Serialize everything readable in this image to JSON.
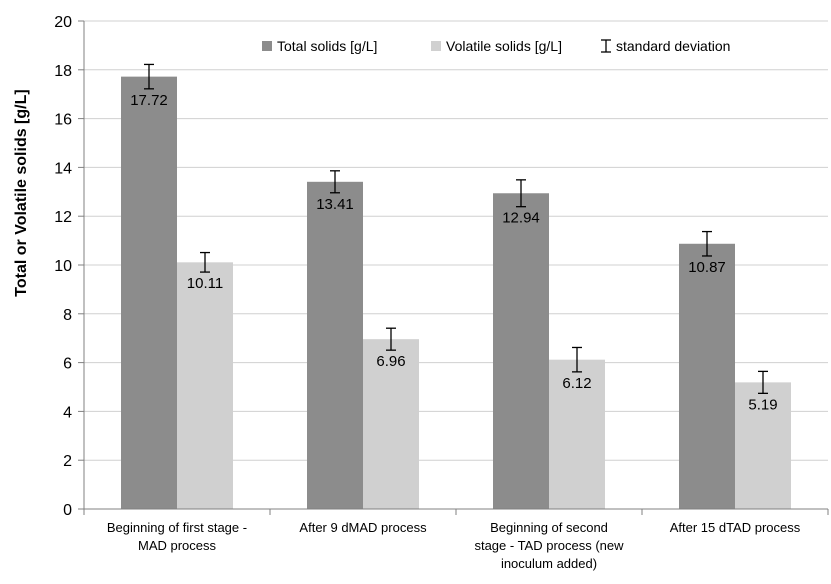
{
  "chart_data": {
    "type": "bar",
    "ylabel": "Total or Volatile solids [g/L]",
    "xlabel": "",
    "ylim": [
      0,
      20
    ],
    "yticks": [
      0,
      2,
      4,
      6,
      8,
      10,
      12,
      14,
      16,
      18,
      20
    ],
    "grid": true,
    "legend_position": "top-right",
    "categories": [
      [
        "Beginning of first stage -",
        "MAD process"
      ],
      [
        "After 9 dMAD process"
      ],
      [
        "Beginning of second",
        "stage - TAD process (new",
        "inoculum added)"
      ],
      [
        "After 15 dTAD process"
      ]
    ],
    "series": [
      {
        "name": "Total solids [g/L]",
        "color": "#8c8c8c",
        "values": [
          17.72,
          13.41,
          12.94,
          10.87
        ],
        "labels": [
          "17.72",
          "13.41",
          "12.94",
          "10.87"
        ],
        "error": [
          0.5,
          0.45,
          0.55,
          0.5
        ]
      },
      {
        "name": "Volatile solids [g/L]",
        "color": "#d0d0d0",
        "values": [
          10.11,
          6.96,
          6.12,
          5.19
        ],
        "labels": [
          "10.11",
          "6.96",
          "6.12",
          "5.19"
        ],
        "error": [
          0.4,
          0.45,
          0.5,
          0.45
        ]
      }
    ],
    "error_legend": "standard deviation"
  }
}
